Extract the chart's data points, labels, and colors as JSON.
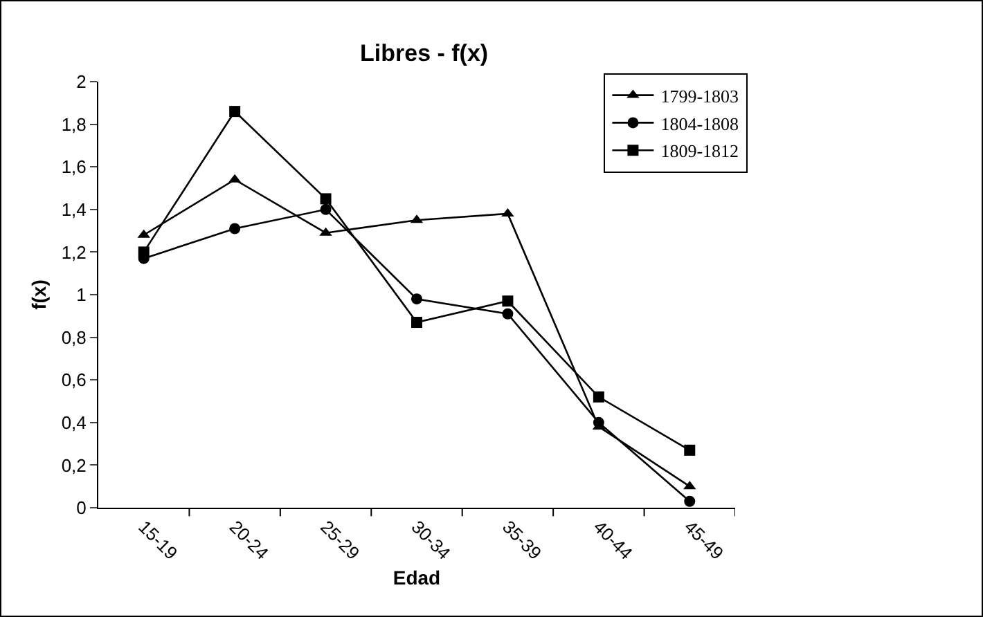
{
  "chart_data": {
    "type": "line",
    "title": "Libres - f(x)",
    "xlabel": "Edad",
    "ylabel": "f(x)",
    "categories": [
      "15-19",
      "20-24",
      "25-29",
      "30-34",
      "35-39",
      "40-44",
      "45-49"
    ],
    "series": [
      {
        "name": "1799-1803",
        "color": "#000000",
        "marker": "triangle",
        "values": [
          1.28,
          1.54,
          1.29,
          1.35,
          1.38,
          0.38,
          0.1
        ]
      },
      {
        "name": "1804-1808",
        "color": "#000000",
        "marker": "circle",
        "values": [
          1.17,
          1.31,
          1.4,
          0.98,
          0.91,
          0.4,
          0.03
        ]
      },
      {
        "name": "1809-1812",
        "color": "#000000",
        "marker": "square",
        "values": [
          1.2,
          1.86,
          1.45,
          0.87,
          0.97,
          0.52,
          0.27
        ]
      }
    ],
    "ylim": [
      0,
      2
    ],
    "yticks": [
      0,
      {
        "value": 0.2,
        "label": "0,2"
      },
      {
        "value": 0.4,
        "label": "0,4"
      },
      {
        "value": 0.6,
        "label": "0,6"
      },
      {
        "value": 0.8,
        "label": "0,8"
      },
      1,
      {
        "value": 1.2,
        "label": "1,2"
      },
      {
        "value": 1.4,
        "label": "1,4"
      },
      {
        "value": 1.6,
        "label": "1,6"
      },
      {
        "value": 1.8,
        "label": "1,8"
      },
      2
    ],
    "grid": false,
    "legend": "top right",
    "line_style": "solid"
  }
}
